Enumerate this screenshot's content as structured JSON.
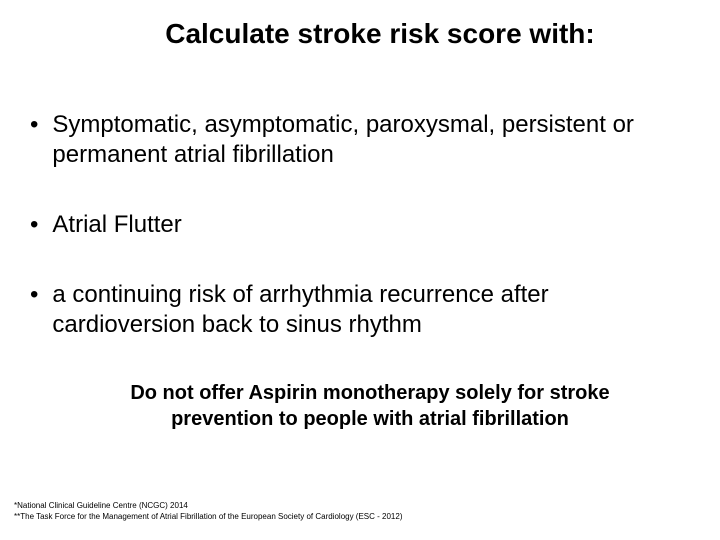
{
  "title": "Calculate stroke risk score with:",
  "bullets": [
    "Symptomatic, asymptomatic, paroxysmal, persistent or permanent atrial fibrillation",
    "Atrial Flutter",
    "a continuing risk of arrhythmia recurrence after cardioversion back to sinus rhythm"
  ],
  "highlight": "Do not offer Aspirin monotherapy solely for stroke prevention to people with atrial fibrillation",
  "footnotes": [
    "*National Clinical Guideline Centre (NCGC) 2014",
    "**The Task Force for the Management of Atrial Fibrillation of the European Society of Cardiology (ESC - 2012)"
  ],
  "colors": {
    "background": "#ffffff",
    "text": "#000000"
  },
  "typography": {
    "title_fontsize": 28,
    "title_weight": "bold",
    "bullet_fontsize": 24,
    "highlight_fontsize": 20,
    "highlight_weight": "bold",
    "footnote_fontsize": 8,
    "font_family": "Arial"
  }
}
